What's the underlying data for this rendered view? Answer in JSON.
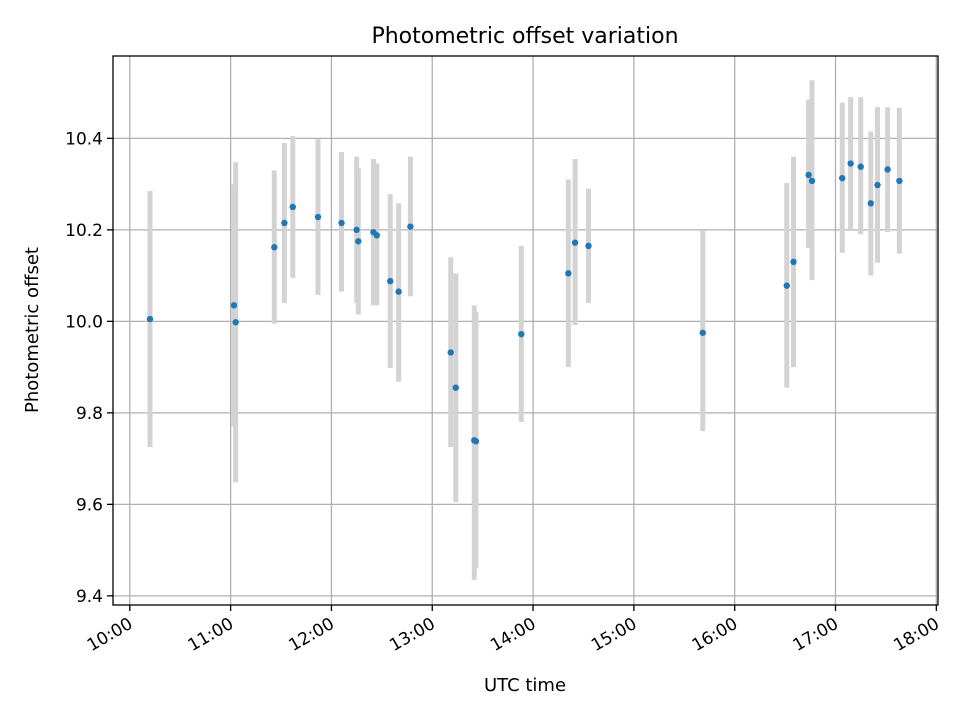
{
  "chart_data": {
    "type": "scatter",
    "title": "Photometric offset variation",
    "xlabel": "UTC time",
    "ylabel": "Photometric offset",
    "xlim": [
      "09:50",
      "18:01"
    ],
    "ylim": [
      9.38,
      10.58
    ],
    "xticks": [
      "10:00",
      "11:00",
      "12:00",
      "13:00",
      "14:00",
      "15:00",
      "16:00",
      "17:00",
      "18:00"
    ],
    "yticks": [
      "9.4",
      "9.6",
      "9.8",
      "10.0",
      "10.2",
      "10.4"
    ],
    "ytick_values": [
      9.4,
      9.6,
      9.8,
      10.0,
      10.2,
      10.4
    ],
    "grid": true,
    "series": [
      {
        "marker_color": "#1f77b4",
        "errorbar_color": "#d3d3d3",
        "points": [
          {
            "x": "10:12",
            "y": 10.005,
            "err_low": 9.725,
            "err_high": 10.285
          },
          {
            "x": "11:02",
            "y": 10.035,
            "err_low": 9.77,
            "err_high": 10.3
          },
          {
            "x": "11:03",
            "y": 9.998,
            "err_low": 9.648,
            "err_high": 10.348
          },
          {
            "x": "11:26",
            "y": 10.162,
            "err_low": 9.995,
            "err_high": 10.33
          },
          {
            "x": "11:32",
            "y": 10.215,
            "err_low": 10.04,
            "err_high": 10.39
          },
          {
            "x": "11:37",
            "y": 10.25,
            "err_low": 10.095,
            "err_high": 10.405
          },
          {
            "x": "11:52",
            "y": 10.228,
            "err_low": 10.058,
            "err_high": 10.398
          },
          {
            "x": "12:06",
            "y": 10.215,
            "err_low": 10.065,
            "err_high": 10.37
          },
          {
            "x": "12:15",
            "y": 10.2,
            "err_low": 10.04,
            "err_high": 10.36
          },
          {
            "x": "12:16",
            "y": 10.175,
            "err_low": 10.015,
            "err_high": 10.335
          },
          {
            "x": "12:25",
            "y": 10.195,
            "err_low": 10.035,
            "err_high": 10.355
          },
          {
            "x": "12:27",
            "y": 10.188,
            "err_low": 10.035,
            "err_high": 10.345
          },
          {
            "x": "12:35",
            "y": 10.088,
            "err_low": 9.898,
            "err_high": 10.278
          },
          {
            "x": "12:40",
            "y": 10.065,
            "err_low": 9.868,
            "err_high": 10.258
          },
          {
            "x": "12:47",
            "y": 10.207,
            "err_low": 10.055,
            "err_high": 10.36
          },
          {
            "x": "13:11",
            "y": 9.932,
            "err_low": 9.725,
            "err_high": 10.14
          },
          {
            "x": "13:14",
            "y": 9.855,
            "err_low": 9.605,
            "err_high": 10.105
          },
          {
            "x": "13:25",
            "y": 9.74,
            "err_low": 9.435,
            "err_high": 10.035
          },
          {
            "x": "13:26",
            "y": 9.738,
            "err_low": 9.46,
            "err_high": 10.02
          },
          {
            "x": "13:53",
            "y": 9.972,
            "err_low": 9.78,
            "err_high": 10.165
          },
          {
            "x": "14:21",
            "y": 10.105,
            "err_low": 9.9,
            "err_high": 10.31
          },
          {
            "x": "14:25",
            "y": 10.172,
            "err_low": 9.992,
            "err_high": 10.355
          },
          {
            "x": "14:33",
            "y": 10.165,
            "err_low": 10.04,
            "err_high": 10.29
          },
          {
            "x": "15:41",
            "y": 9.975,
            "err_low": 9.76,
            "err_high": 10.198
          },
          {
            "x": "16:31",
            "y": 10.078,
            "err_low": 9.855,
            "err_high": 10.302
          },
          {
            "x": "16:35",
            "y": 10.13,
            "err_low": 9.9,
            "err_high": 10.36
          },
          {
            "x": "16:44",
            "y": 10.32,
            "err_low": 10.16,
            "err_high": 10.485
          },
          {
            "x": "16:46",
            "y": 10.307,
            "err_low": 10.09,
            "err_high": 10.527
          },
          {
            "x": "17:04",
            "y": 10.313,
            "err_low": 10.15,
            "err_high": 10.478
          },
          {
            "x": "17:09",
            "y": 10.345,
            "err_low": 10.2,
            "err_high": 10.49
          },
          {
            "x": "17:15",
            "y": 10.338,
            "err_low": 10.19,
            "err_high": 10.49
          },
          {
            "x": "17:21",
            "y": 10.258,
            "err_low": 10.1,
            "err_high": 10.415
          },
          {
            "x": "17:25",
            "y": 10.298,
            "err_low": 10.128,
            "err_high": 10.468
          },
          {
            "x": "17:31",
            "y": 10.332,
            "err_low": 10.195,
            "err_high": 10.468
          },
          {
            "x": "17:38",
            "y": 10.307,
            "err_low": 10.148,
            "err_high": 10.467
          }
        ]
      }
    ]
  }
}
